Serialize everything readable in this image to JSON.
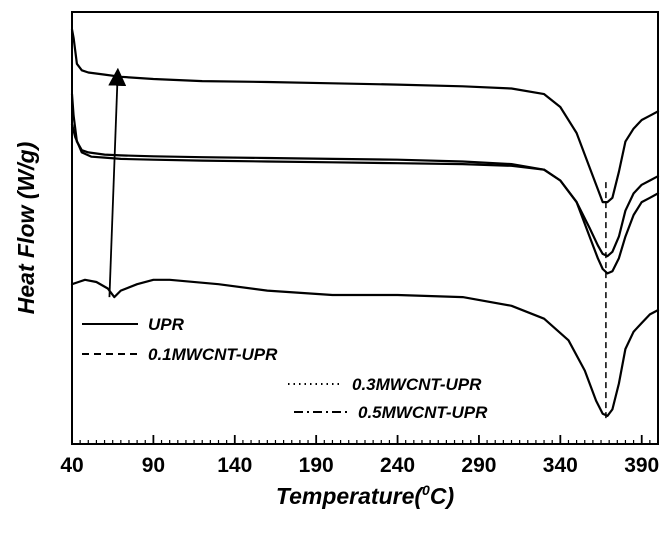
{
  "chart_data": {
    "type": "line",
    "title": "",
    "xlabel": "Temperature(",
    "xlabel_sup": "0",
    "xlabel_tail": "C)",
    "ylabel": "Heat Flow (W/g)",
    "xlim": [
      40,
      400
    ],
    "ylim": [
      0,
      100
    ],
    "y_tick_labels": false,
    "grid": false,
    "legend_position": "bottom-left",
    "x_ticks": [
      40,
      90,
      140,
      190,
      240,
      290,
      340,
      390
    ],
    "series": [
      {
        "name": "UPR",
        "style": "solid",
        "x": [
          40,
          41,
          43,
          46,
          50,
          60,
          70,
          90,
          120,
          160,
          200,
          240,
          280,
          310,
          330,
          340,
          350,
          358,
          363,
          366,
          369,
          372,
          376,
          380,
          385,
          390,
          395,
          400
        ],
        "y": [
          96,
          94,
          88,
          86.5,
          86,
          85.5,
          85,
          84.5,
          84,
          83.8,
          83.5,
          83.2,
          82.8,
          82.3,
          81,
          78,
          72,
          64,
          59,
          56,
          56,
          57,
          63,
          70,
          73,
          75,
          76,
          77
        ]
      },
      {
        "name": "0.1MWCNT-UPR",
        "style": "dashed",
        "x": [
          40,
          42,
          46,
          52,
          60,
          70,
          90,
          120,
          160,
          200,
          240,
          280,
          310,
          330,
          340,
          350,
          358,
          363,
          366,
          369,
          372,
          376,
          380,
          385,
          390,
          395,
          400
        ],
        "y": [
          74,
          71,
          67.5,
          66.5,
          66.3,
          66,
          65.8,
          65.6,
          65.4,
          65.2,
          65,
          64.8,
          64.4,
          63.5,
          61,
          56,
          48,
          43,
          40.5,
          39.5,
          40,
          43,
          48,
          53,
          56,
          57,
          58
        ]
      },
      {
        "name": "0.3MWCNT-UPR",
        "style": "dotted",
        "x": [
          40,
          41,
          43,
          46,
          50,
          60,
          70,
          90,
          120,
          160,
          200,
          240,
          280,
          310,
          330,
          340,
          350,
          358,
          363,
          366,
          369,
          372,
          376,
          380,
          385,
          390,
          395,
          400
        ],
        "y": [
          81,
          76,
          70,
          68,
          67.5,
          67,
          66.8,
          66.6,
          66.4,
          66.2,
          66,
          65.8,
          65.4,
          64.8,
          63.5,
          61,
          56,
          50,
          46,
          44,
          43.5,
          44.5,
          48,
          54,
          58,
          60,
          61,
          62
        ]
      },
      {
        "name": "0.5MWCNT-UPR",
        "style": "dashdot",
        "x": [
          40,
          44,
          48,
          55,
          62,
          66,
          70,
          80,
          90,
          100,
          130,
          160,
          200,
          240,
          280,
          310,
          330,
          345,
          355,
          362,
          366,
          369,
          372,
          376,
          380,
          385,
          390,
          395,
          400
        ],
        "y": [
          37,
          37.5,
          38,
          37.5,
          36,
          34,
          35.5,
          37,
          38,
          38,
          37,
          35.5,
          34.5,
          34.5,
          34,
          32,
          29,
          24,
          17,
          10,
          7,
          6.5,
          8,
          14,
          22,
          26,
          28,
          30,
          31
        ]
      }
    ],
    "annotations": [
      {
        "type": "arrow",
        "from": [
          63,
          34
        ],
        "to": [
          68,
          85
        ],
        "description": "arrow from lowest curve up to top curve"
      },
      {
        "type": "vline",
        "x": 368,
        "y_range": [
          6,
          61
        ],
        "style": "dashed"
      }
    ]
  }
}
